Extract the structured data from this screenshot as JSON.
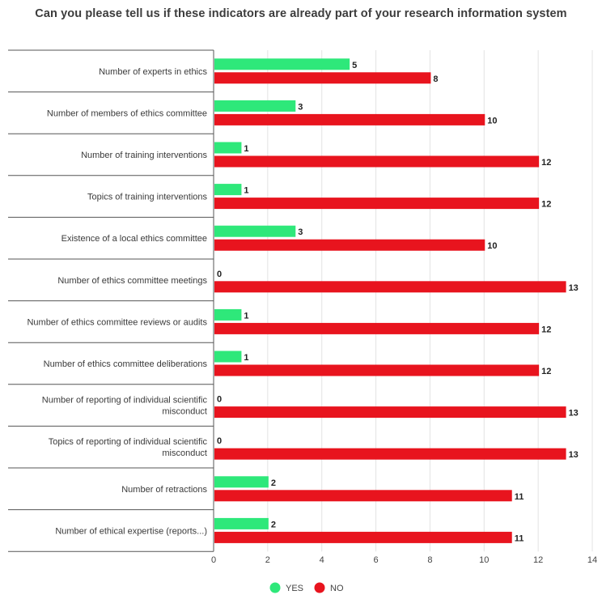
{
  "chart_data": {
    "type": "bar",
    "orientation": "horizontal",
    "title": "Can you please tell us if these indicators are already part of your research information system",
    "categories": [
      "Number of experts in ethics",
      "Number of members of ethics committee",
      "Number of training interventions",
      "Topics of training interventions",
      "Existence of a local ethics committee",
      "Number of ethics committee meetings",
      "Number of ethics committee reviews or audits",
      "Number of ethics committee deliberations",
      "Number of reporting of individual scientific misconduct",
      "Topics of reporting of individual scientific misconduct",
      "Number of retractions",
      "Number of ethical expertise (reports...)"
    ],
    "series": [
      {
        "name": "YES",
        "color": "#2ee87a",
        "values": [
          5,
          3,
          1,
          1,
          3,
          0,
          1,
          1,
          0,
          0,
          2,
          2
        ]
      },
      {
        "name": "NO",
        "color": "#e8141e",
        "values": [
          8,
          10,
          12,
          12,
          10,
          13,
          12,
          12,
          13,
          13,
          11,
          11
        ]
      }
    ],
    "xlim": [
      0,
      14
    ],
    "xticks": [
      0,
      2,
      4,
      6,
      8,
      10,
      12,
      14
    ],
    "grid": "vertical",
    "legend": "bottom-center",
    "data_labels": true
  }
}
